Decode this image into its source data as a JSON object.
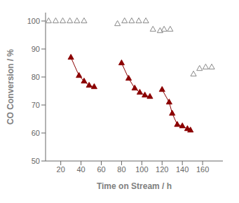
{
  "chart_data": {
    "type": "scatter",
    "xlabel": "Time on Stream  / h",
    "ylabel": "CO Conversion / %",
    "xlim": [
      5,
      180
    ],
    "ylim": [
      50,
      103
    ],
    "xticks": [
      20,
      40,
      60,
      80,
      100,
      120,
      140,
      160
    ],
    "yticks": [
      50,
      60,
      70,
      80,
      90,
      100
    ],
    "grid": false,
    "series": [
      {
        "type": "scatter",
        "marker": "triangle-open",
        "color": "#888888",
        "x": [
          8,
          15,
          22,
          29,
          36,
          43,
          76,
          83,
          90,
          97,
          104,
          111,
          118,
          122,
          128,
          151,
          157,
          163,
          169
        ],
        "values": [
          100,
          100,
          100,
          100,
          100,
          100,
          99,
          100,
          100,
          100,
          100,
          97,
          96.5,
          97,
          97,
          81,
          83,
          83.5,
          83.5
        ]
      },
      {
        "type": "line",
        "marker": "triangle",
        "color": "#8b0000",
        "x": [
          30,
          38,
          43,
          48,
          53
        ],
        "values": [
          87,
          80.5,
          78.5,
          77,
          76.5
        ]
      },
      {
        "type": "line",
        "marker": "triangle",
        "color": "#8b0000",
        "x": [
          80,
          87,
          93,
          98,
          103,
          108
        ],
        "values": [
          85,
          79.5,
          76,
          74.5,
          73.5,
          73
        ]
      },
      {
        "type": "line",
        "marker": "triangle",
        "color": "#8b0000",
        "x": [
          120,
          127,
          130,
          135,
          140,
          145,
          148
        ],
        "values": [
          75.5,
          71,
          67,
          63,
          62.5,
          61.5,
          61
        ]
      }
    ]
  }
}
